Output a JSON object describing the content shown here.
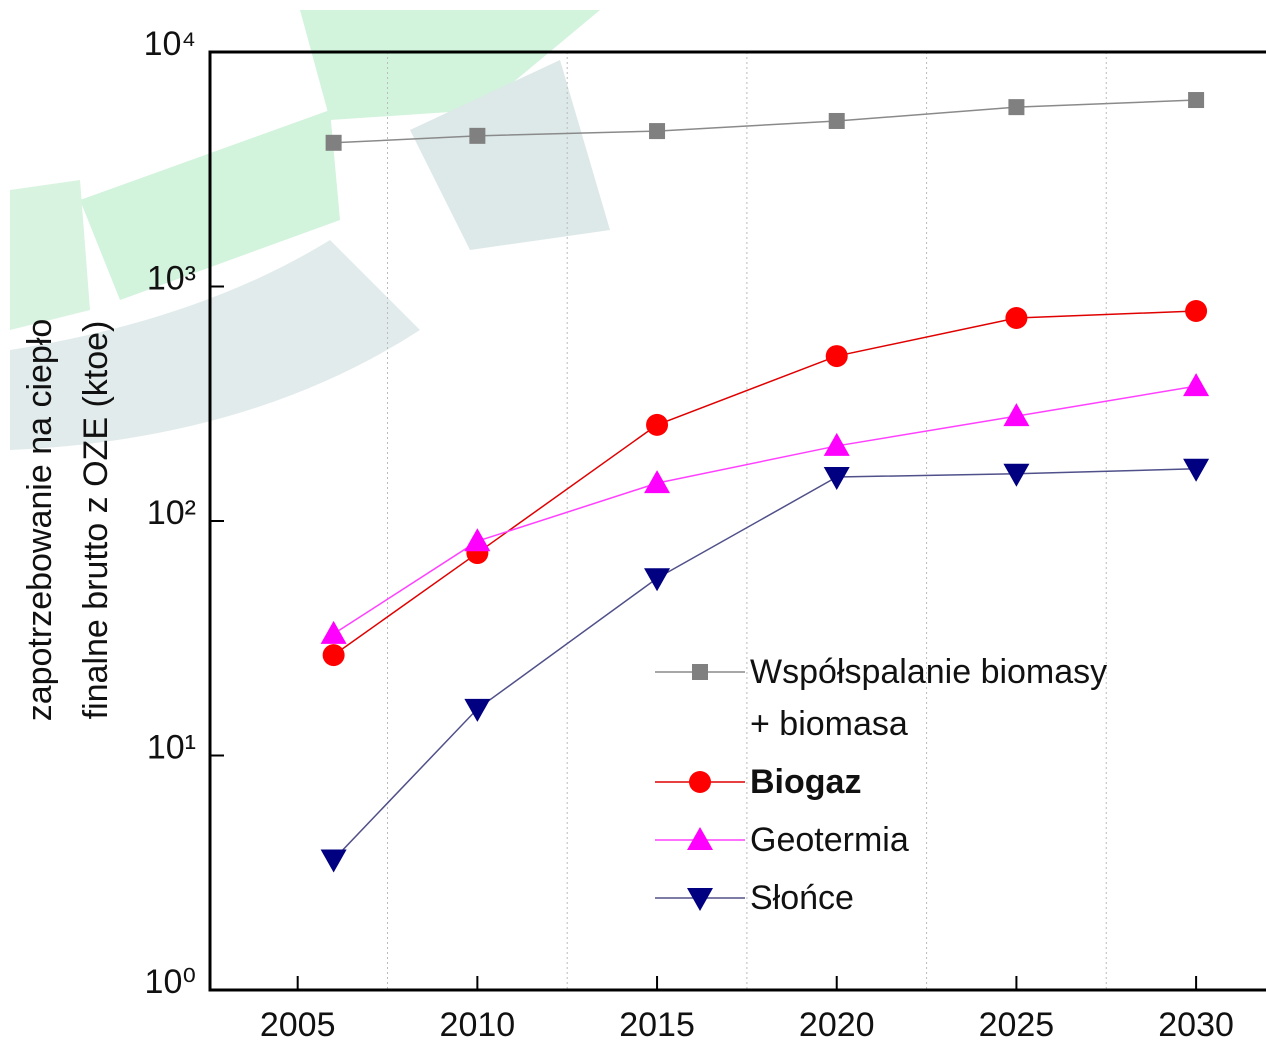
{
  "chart_data": {
    "type": "line",
    "ylabel": [
      "zapotrzebowanie na ciepło",
      "finalne brutto z OZE (ktoe)"
    ],
    "x": [
      2006,
      2010,
      2015,
      2020,
      2025,
      2030
    ],
    "xlim": [
      2002.56,
      2031.5
    ],
    "xticks": [
      2005,
      2010,
      2015,
      2020,
      2025,
      2030
    ],
    "x_grid": [
      2007.5,
      2012.5,
      2017.5,
      2022.5,
      2027.5
    ],
    "ylim": [
      1,
      10000
    ],
    "log_y": true,
    "yticks": [
      {
        "value": 1,
        "label": "10⁰"
      },
      {
        "value": 10,
        "label": "10¹"
      },
      {
        "value": 100,
        "label": "10²"
      },
      {
        "value": 1000,
        "label": "10³"
      },
      {
        "value": 10000,
        "label": "10⁴"
      }
    ],
    "series": [
      {
        "name": "Współspalanie biomasy + biomasa",
        "color": "#808080",
        "line_color": "#8a8a8a",
        "marker": "square",
        "values": [
          4100,
          4390,
          4600,
          5080,
          5820,
          6240
        ]
      },
      {
        "name": "Biogaz",
        "color": "#ff0000",
        "line_color": "#e00000",
        "marker": "circle",
        "bold": true,
        "values": [
          26.8,
          73,
          257,
          505,
          734,
          786
        ]
      },
      {
        "name": "Geotermia",
        "color": "#ff00ff",
        "line_color": "#ff40ff",
        "marker": "triangle-up",
        "values": [
          33,
          82,
          145,
          209,
          280,
          376
        ]
      },
      {
        "name": "Słońce",
        "color": "#000080",
        "line_color": "#50508a",
        "marker": "triangle-down",
        "values": [
          3.6,
          15.8,
          57,
          154,
          159,
          167
        ]
      }
    ]
  }
}
